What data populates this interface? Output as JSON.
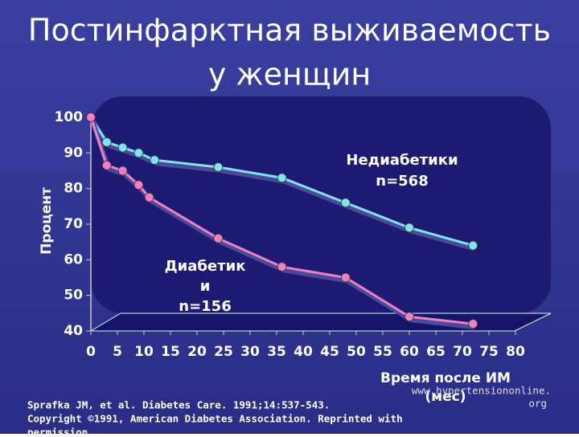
{
  "chart_data": {
    "type": "line",
    "title": [
      "Постинфарктная выживаемость",
      "у женщин"
    ],
    "y_label": "Процент",
    "x_label": [
      "Время после ИМ",
      "(мес)"
    ],
    "annotations": [
      [
        "Недиабетики",
        "n=568"
      ],
      [
        "Диабетик",
        "и",
        "n=156"
      ]
    ],
    "footer": [
      "Sprafka JM, et al. Diabetes Care. 1991;14:537-543.",
      "Copyright ©1991, American Diabetes Association. Reprinted with",
      "permission."
    ],
    "source_url": [
      "www.hypertensiononline.",
      "org"
    ],
    "xlim": [
      0,
      80
    ],
    "xticks": [
      0,
      5,
      10,
      15,
      20,
      25,
      30,
      35,
      40,
      45,
      50,
      55,
      60,
      65,
      70,
      75,
      80
    ],
    "ylim": [
      40,
      100
    ],
    "yticks": [
      40,
      50,
      60,
      70,
      80,
      90,
      100
    ],
    "series": [
      {
        "name": "Недиабетики",
        "color": "#80e4ec",
        "x": [
          0,
          3,
          6,
          9,
          12,
          24,
          36,
          48,
          60,
          72
        ],
        "values": [
          100,
          93,
          91.5,
          90,
          88,
          86,
          83,
          76,
          69,
          64
        ]
      },
      {
        "name": "Диабетик",
        "color": "#f080c4",
        "x": [
          0,
          3,
          6,
          9,
          11,
          24,
          36,
          48,
          60,
          72
        ],
        "values": [
          100,
          86.5,
          85,
          81,
          77.5,
          66,
          58,
          55,
          44,
          42
        ]
      }
    ]
  }
}
